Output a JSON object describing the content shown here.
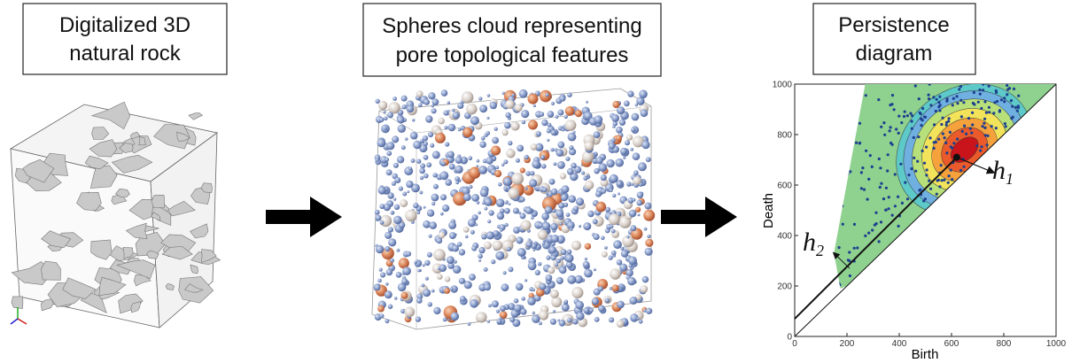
{
  "panels": [
    {
      "title_lines": [
        "Digitalized 3D",
        "natural rock"
      ]
    },
    {
      "title_lines": [
        "Spheres cloud representing",
        "pore topological features"
      ]
    },
    {
      "title_lines": [
        "Persistence",
        "diagram"
      ]
    }
  ],
  "persistence_diagram": {
    "x_label": "Birth",
    "y_label": "Death",
    "xlim": [
      0,
      1000
    ],
    "ylim": [
      0,
      1000
    ],
    "xticks": [
      0,
      200,
      400,
      600,
      800,
      1000
    ],
    "yticks": [
      0,
      200,
      400,
      600,
      800,
      1000
    ],
    "annotations": [
      {
        "symbol": "h",
        "subscript": "1"
      },
      {
        "symbol": "h",
        "subscript": "2"
      }
    ]
  }
}
